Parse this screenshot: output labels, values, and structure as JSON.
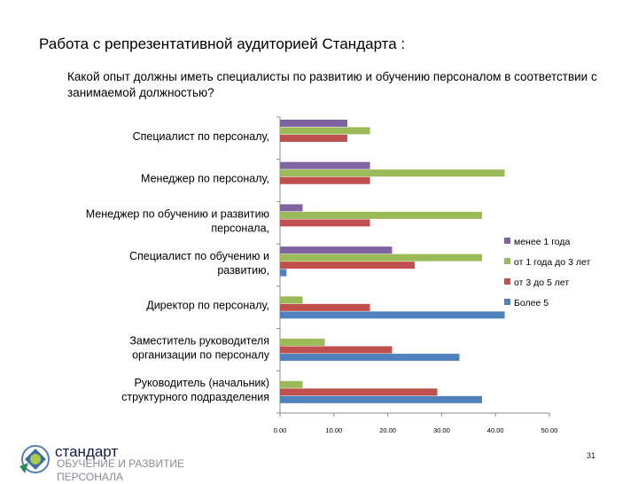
{
  "slide": {
    "title": "Работа с репрезентативной аудиторией Стандарта :",
    "question": "Какой опыт должны иметь специалисты по развитию и обучению персоналом в соответствии с занимаемой должностью?",
    "page_number": "31"
  },
  "brand": {
    "name": "стандарт",
    "subtitle": "ОБУЧЕНИЕ И РАЗВИТИЕ ПЕРСОНАЛА",
    "logo_icon": "standard-logo-icon"
  },
  "chart_data": {
    "type": "bar",
    "orientation": "horizontal",
    "title": "",
    "xlabel": "",
    "ylabel": "",
    "xlim": [
      0,
      50
    ],
    "x_ticks": [
      "0.00",
      "10.00",
      "20.00",
      "30.00",
      "40.00",
      "50.00"
    ],
    "legend_position": "right",
    "categories": [
      "Специалист по персоналу,",
      "Менеджер по персоналу,",
      "Менеджер по обучению и развитию персонала,",
      "Специалист по обучению и развитию,",
      "Директор по персоналу,",
      "Заместитель руководителя организации по персоналу",
      "Руководитель (начальник) структурного подразделения"
    ],
    "category_lines": [
      [
        "Специалист по персоналу,"
      ],
      [
        "Менеджер по персоналу,"
      ],
      [
        "Менеджер по обучению и развитию",
        "персонала,"
      ],
      [
        "Специалист по обучению и",
        "развитию,"
      ],
      [
        "Директор по персоналу,"
      ],
      [
        "Заместитель руководителя",
        "организации по персоналу"
      ],
      [
        "Руководитель (начальник)",
        "структурного подразделения"
      ]
    ],
    "series": [
      {
        "name": "менее 1 года",
        "color": "#8064a2",
        "values": [
          12.5,
          16.7,
          4.2,
          20.8,
          0,
          0,
          0
        ]
      },
      {
        "name": "от 1 года до 3 лет",
        "color": "#9bbb59",
        "values": [
          16.7,
          41.7,
          37.5,
          37.5,
          4.2,
          8.3,
          4.2
        ]
      },
      {
        "name": "от 3 до 5 лет",
        "color": "#c0504d",
        "values": [
          12.5,
          16.7,
          16.7,
          25.0,
          16.7,
          20.8,
          29.2
        ]
      },
      {
        "name": "Более 5",
        "color": "#4f81bd",
        "values": [
          0,
          0,
          0,
          1.2,
          41.7,
          33.3,
          37.5
        ]
      }
    ]
  }
}
